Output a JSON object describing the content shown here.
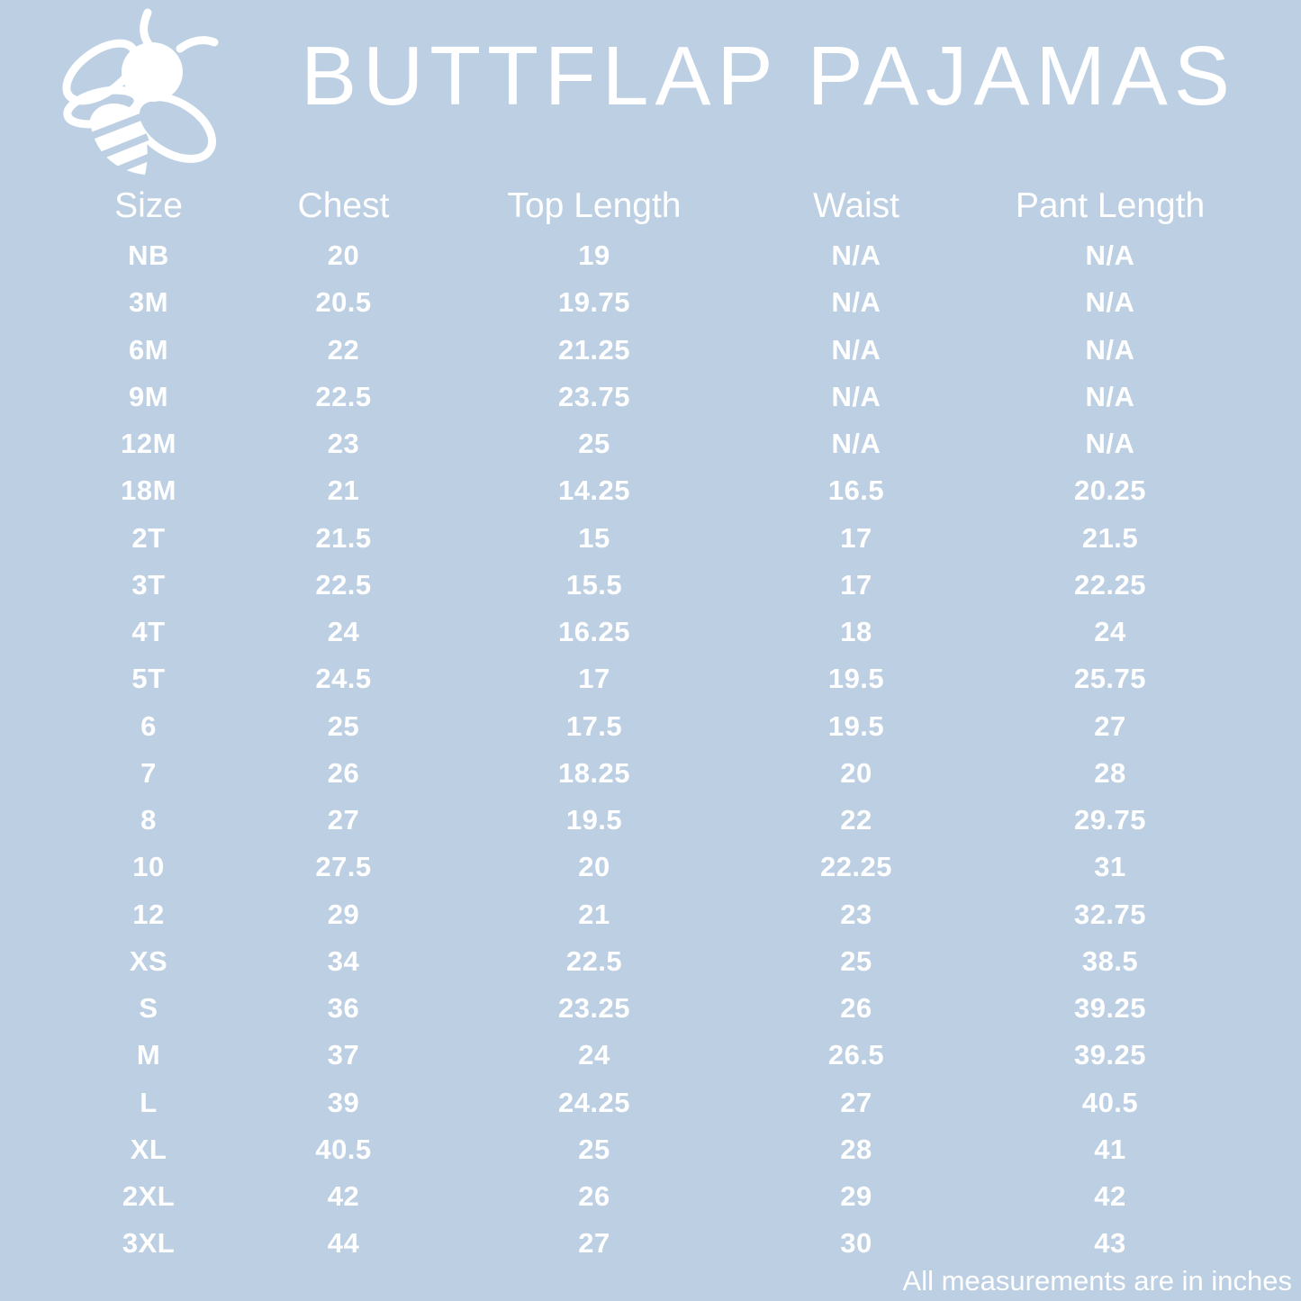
{
  "header": {
    "title": "BUTTFLAP PAJAMAS",
    "logo_icon": "bee-icon"
  },
  "table": {
    "columns": [
      "Size",
      "Chest",
      "Top Length",
      "Waist",
      "Pant Length"
    ],
    "rows": [
      [
        "NB",
        "20",
        "19",
        "N/A",
        "N/A"
      ],
      [
        "3M",
        "20.5",
        "19.75",
        "N/A",
        "N/A"
      ],
      [
        "6M",
        "22",
        "21.25",
        "N/A",
        "N/A"
      ],
      [
        "9M",
        "22.5",
        "23.75",
        "N/A",
        "N/A"
      ],
      [
        "12M",
        "23",
        "25",
        "N/A",
        "N/A"
      ],
      [
        "18M",
        "21",
        "14.25",
        "16.5",
        "20.25"
      ],
      [
        "2T",
        "21.5",
        "15",
        "17",
        "21.5"
      ],
      [
        "3T",
        "22.5",
        "15.5",
        "17",
        "22.25"
      ],
      [
        "4T",
        "24",
        "16.25",
        "18",
        "24"
      ],
      [
        "5T",
        "24.5",
        "17",
        "19.5",
        "25.75"
      ],
      [
        "6",
        "25",
        "17.5",
        "19.5",
        "27"
      ],
      [
        "7",
        "26",
        "18.25",
        "20",
        "28"
      ],
      [
        "8",
        "27",
        "19.5",
        "22",
        "29.75"
      ],
      [
        "10",
        "27.5",
        "20",
        "22.25",
        "31"
      ],
      [
        "12",
        "29",
        "21",
        "23",
        "32.75"
      ],
      [
        "XS",
        "34",
        "22.5",
        "25",
        "38.5"
      ],
      [
        "S",
        "36",
        "23.25",
        "26",
        "39.25"
      ],
      [
        "M",
        "37",
        "24",
        "26.5",
        "39.25"
      ],
      [
        "L",
        "39",
        "24.25",
        "27",
        "40.5"
      ],
      [
        "XL",
        "40.5",
        "25",
        "28",
        "41"
      ],
      [
        "2XL",
        "42",
        "26",
        "29",
        "42"
      ],
      [
        "3XL",
        "44",
        "27",
        "30",
        "43"
      ]
    ]
  },
  "footer": {
    "note": "All measurements are in inches"
  },
  "colors": {
    "background": "#bdcfe3",
    "text": "#ffffff"
  }
}
